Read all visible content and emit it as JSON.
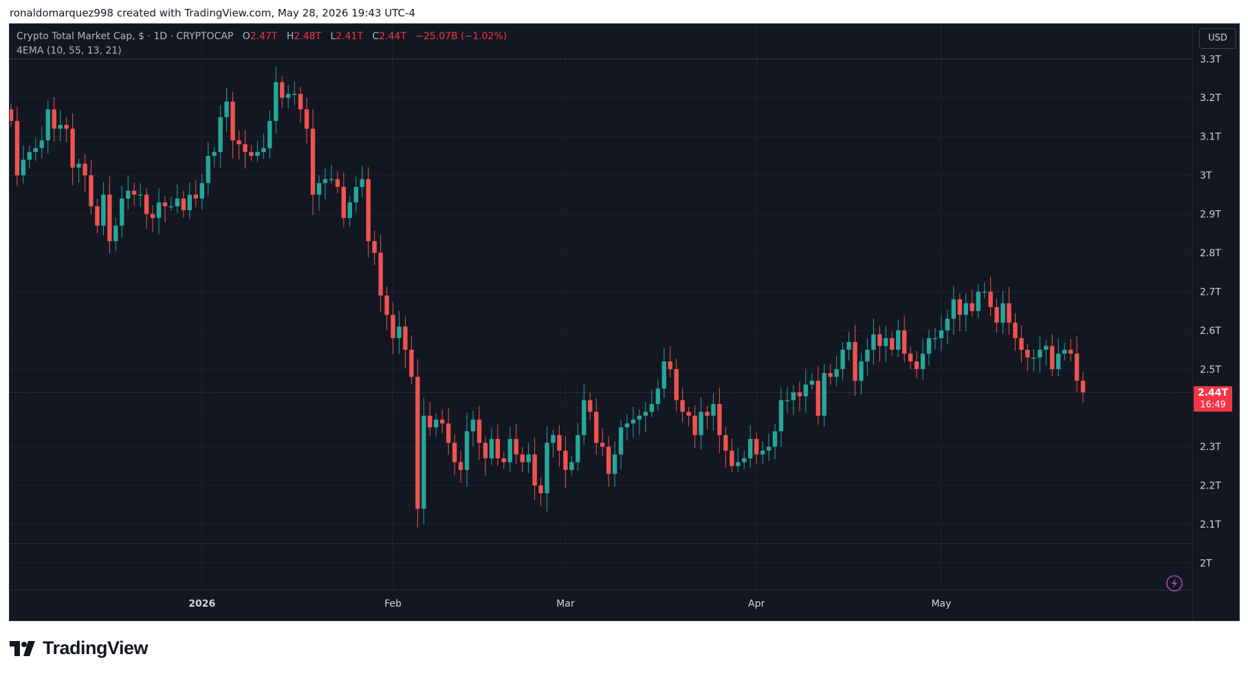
{
  "caption": "ronaldomarquez998 created with TradingView.com, May 28, 2026 19:43 UTC-4",
  "legend": {
    "symbol": "Crypto Total Market Cap, $ · 1D · CRYPTOCAP",
    "o_label": "O",
    "o": "2.47T",
    "h_label": "H",
    "h": "2.48T",
    "l_label": "L",
    "l": "2.41T",
    "c_label": "C",
    "c": "2.44T",
    "change": "−25.07B (−1.02%)",
    "indicator": "4EMA (10, 55, 13, 21)"
  },
  "currency": "USD",
  "last_price": {
    "label": "2.44T",
    "countdown": "16:49"
  },
  "brand": "TradingView",
  "colors": {
    "up": "#26a69a",
    "down": "#ef5350",
    "background": "#131722",
    "grid": "#1f2330",
    "axis_text": "#d1d4dc",
    "price_tag": "#f23645"
  },
  "chart_data": {
    "type": "candlestick",
    "title": "Crypto Total Market Cap, $ · 1D · CRYPTOCAP",
    "unit": "T",
    "ylim": [
      1.93,
      3.39
    ],
    "yticks": [
      2.0,
      2.1,
      2.2,
      2.3,
      2.4,
      2.5,
      2.6,
      2.7,
      2.8,
      2.9,
      3.0,
      3.1,
      3.2,
      3.3
    ],
    "ytick_labels": [
      "2T",
      "2.1T",
      "2.2T",
      "2.3T",
      "2.4T",
      "2.5T",
      "2.6T",
      "2.7T",
      "2.8T",
      "2.9T",
      "3T",
      "3.1T",
      "3.2T",
      "3.3T"
    ],
    "x_labels": [
      {
        "label": "2026",
        "index": 31,
        "bold": true
      },
      {
        "label": "Feb",
        "index": 62
      },
      {
        "label": "Mar",
        "index": 90
      },
      {
        "label": "Apr",
        "index": 121
      },
      {
        "label": "May",
        "index": 151
      }
    ],
    "horizontal_lines": [
      3.3,
      2.05
    ],
    "last_price": 2.44,
    "grid": true,
    "legend_position": "top-left",
    "closes": [
      3.14,
      3.0,
      3.04,
      3.06,
      3.07,
      3.09,
      3.17,
      3.12,
      3.13,
      3.12,
      3.02,
      3.03,
      3.0,
      2.92,
      2.87,
      2.95,
      2.83,
      2.87,
      2.94,
      2.96,
      2.95,
      2.95,
      2.9,
      2.89,
      2.93,
      2.92,
      2.92,
      2.94,
      2.91,
      2.95,
      2.94,
      2.98,
      3.05,
      3.06,
      3.15,
      3.19,
      3.09,
      3.08,
      3.06,
      3.05,
      3.06,
      3.07,
      3.14,
      3.24,
      3.2,
      3.21,
      3.21,
      3.17,
      3.12,
      2.95,
      2.98,
      2.99,
      2.99,
      2.97,
      2.89,
      2.93,
      2.97,
      2.99,
      2.83,
      2.8,
      2.69,
      2.64,
      2.58,
      2.61,
      2.55,
      2.48,
      2.14,
      2.38,
      2.35,
      2.37,
      2.36,
      2.31,
      2.26,
      2.24,
      2.34,
      2.37,
      2.31,
      2.27,
      2.32,
      2.27,
      2.26,
      2.32,
      2.28,
      2.26,
      2.28,
      2.2,
      2.18,
      2.31,
      2.33,
      2.29,
      2.24,
      2.26,
      2.33,
      2.42,
      2.39,
      2.31,
      2.3,
      2.23,
      2.28,
      2.35,
      2.36,
      2.37,
      2.38,
      2.39,
      2.41,
      2.45,
      2.52,
      2.5,
      2.42,
      2.39,
      2.38,
      2.33,
      2.39,
      2.38,
      2.41,
      2.33,
      2.29,
      2.25,
      2.26,
      2.27,
      2.32,
      2.28,
      2.29,
      2.3,
      2.34,
      2.42,
      2.42,
      2.44,
      2.43,
      2.46,
      2.47,
      2.38,
      2.49,
      2.48,
      2.5,
      2.55,
      2.57,
      2.47,
      2.52,
      2.55,
      2.59,
      2.56,
      2.58,
      2.55,
      2.6,
      2.54,
      2.52,
      2.5,
      2.54,
      2.58,
      2.58,
      2.6,
      2.63,
      2.68,
      2.64,
      2.67,
      2.65,
      2.7,
      2.7,
      2.66,
      2.62,
      2.67,
      2.62,
      2.58,
      2.55,
      2.53,
      2.53,
      2.55,
      2.56,
      2.5,
      2.54,
      2.55,
      2.54,
      2.47,
      2.44
    ]
  }
}
